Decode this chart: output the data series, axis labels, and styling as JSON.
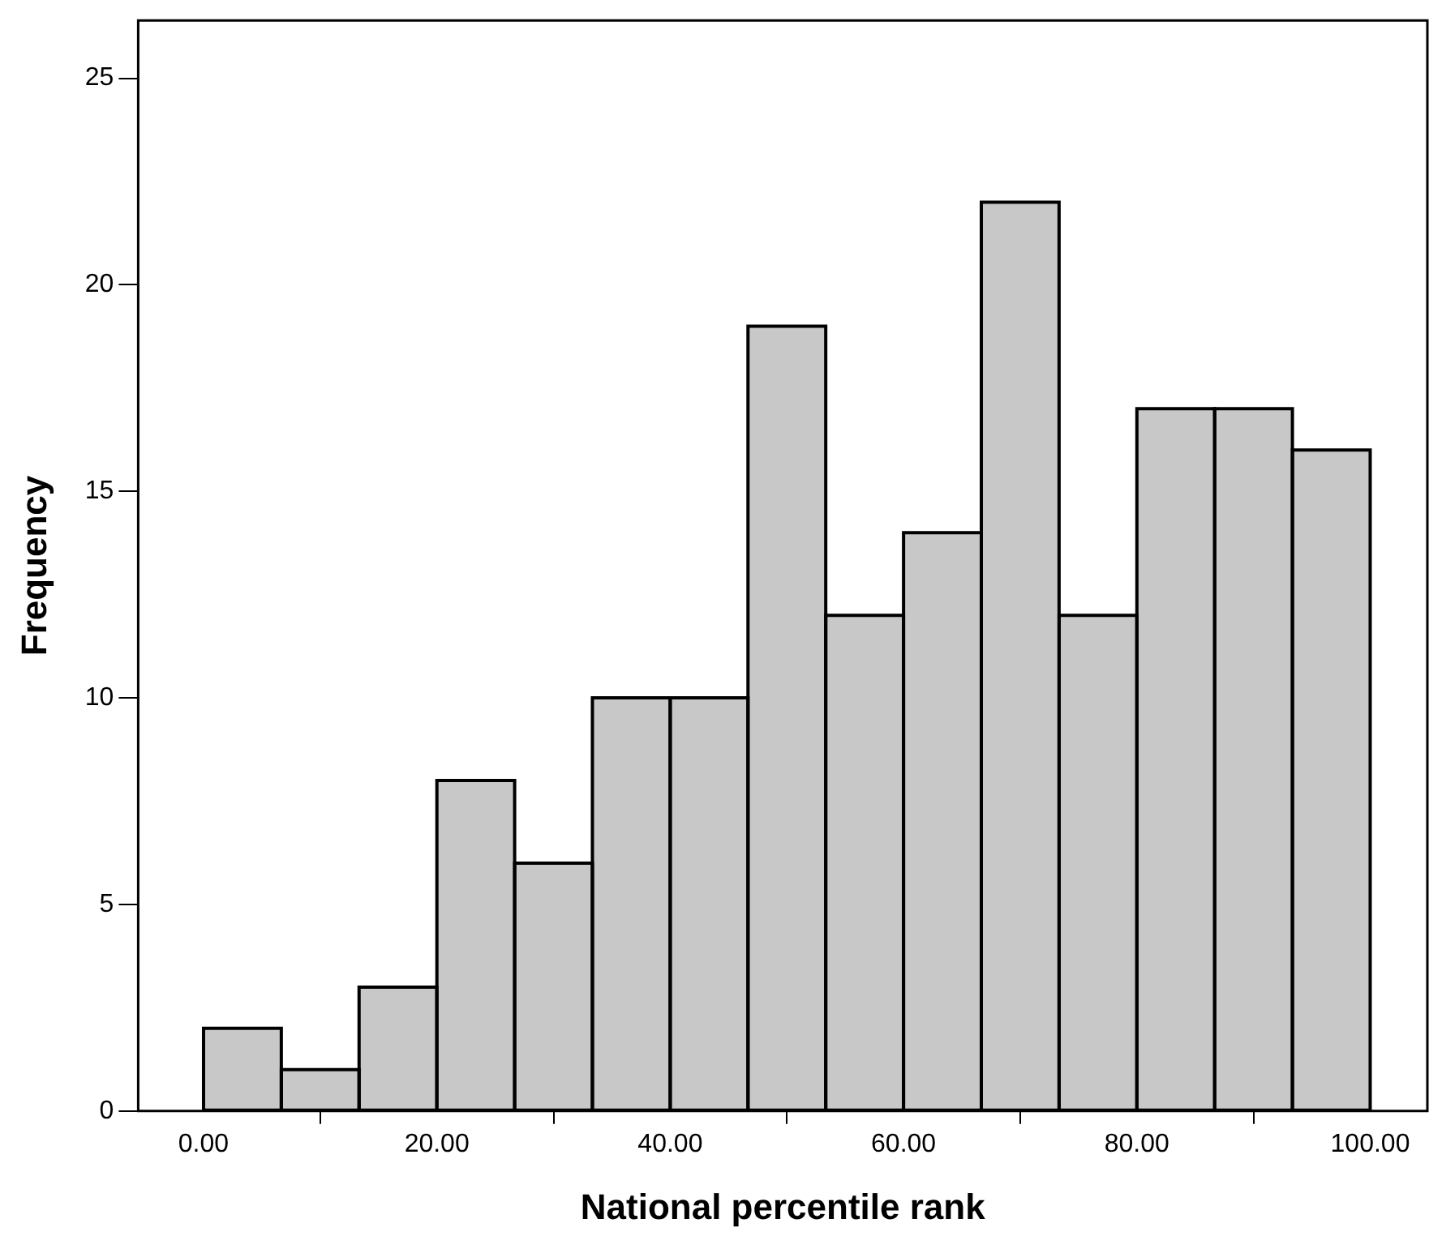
{
  "chart_data": {
    "type": "histogram",
    "xlabel": "National percentile rank",
    "ylabel": "Frequency",
    "bins": [
      0,
      6.67,
      13.33,
      20,
      26.67,
      33.33,
      40,
      46.67,
      53.33,
      60,
      66.67,
      73.33,
      80,
      86.67,
      93.33,
      100
    ],
    "values": [
      2,
      1,
      3,
      8,
      6,
      10,
      10,
      19,
      12,
      14,
      22,
      12,
      17,
      17,
      16
    ],
    "color": "#c8c8c8",
    "xlim": [
      -5.6,
      104.9
    ],
    "xticks": [
      {
        "value": 0,
        "label": "0.00"
      },
      {
        "value": 20,
        "label": "20.00"
      },
      {
        "value": 40,
        "label": "40.00"
      },
      {
        "value": 60,
        "label": "60.00"
      },
      {
        "value": 80,
        "label": "80.00"
      },
      {
        "value": 100,
        "label": "100.00"
      }
    ],
    "ylim": [
      0,
      26.4
    ],
    "yticks": [
      0,
      5,
      10,
      15,
      20,
      25
    ],
    "grid": false,
    "legend": false
  }
}
